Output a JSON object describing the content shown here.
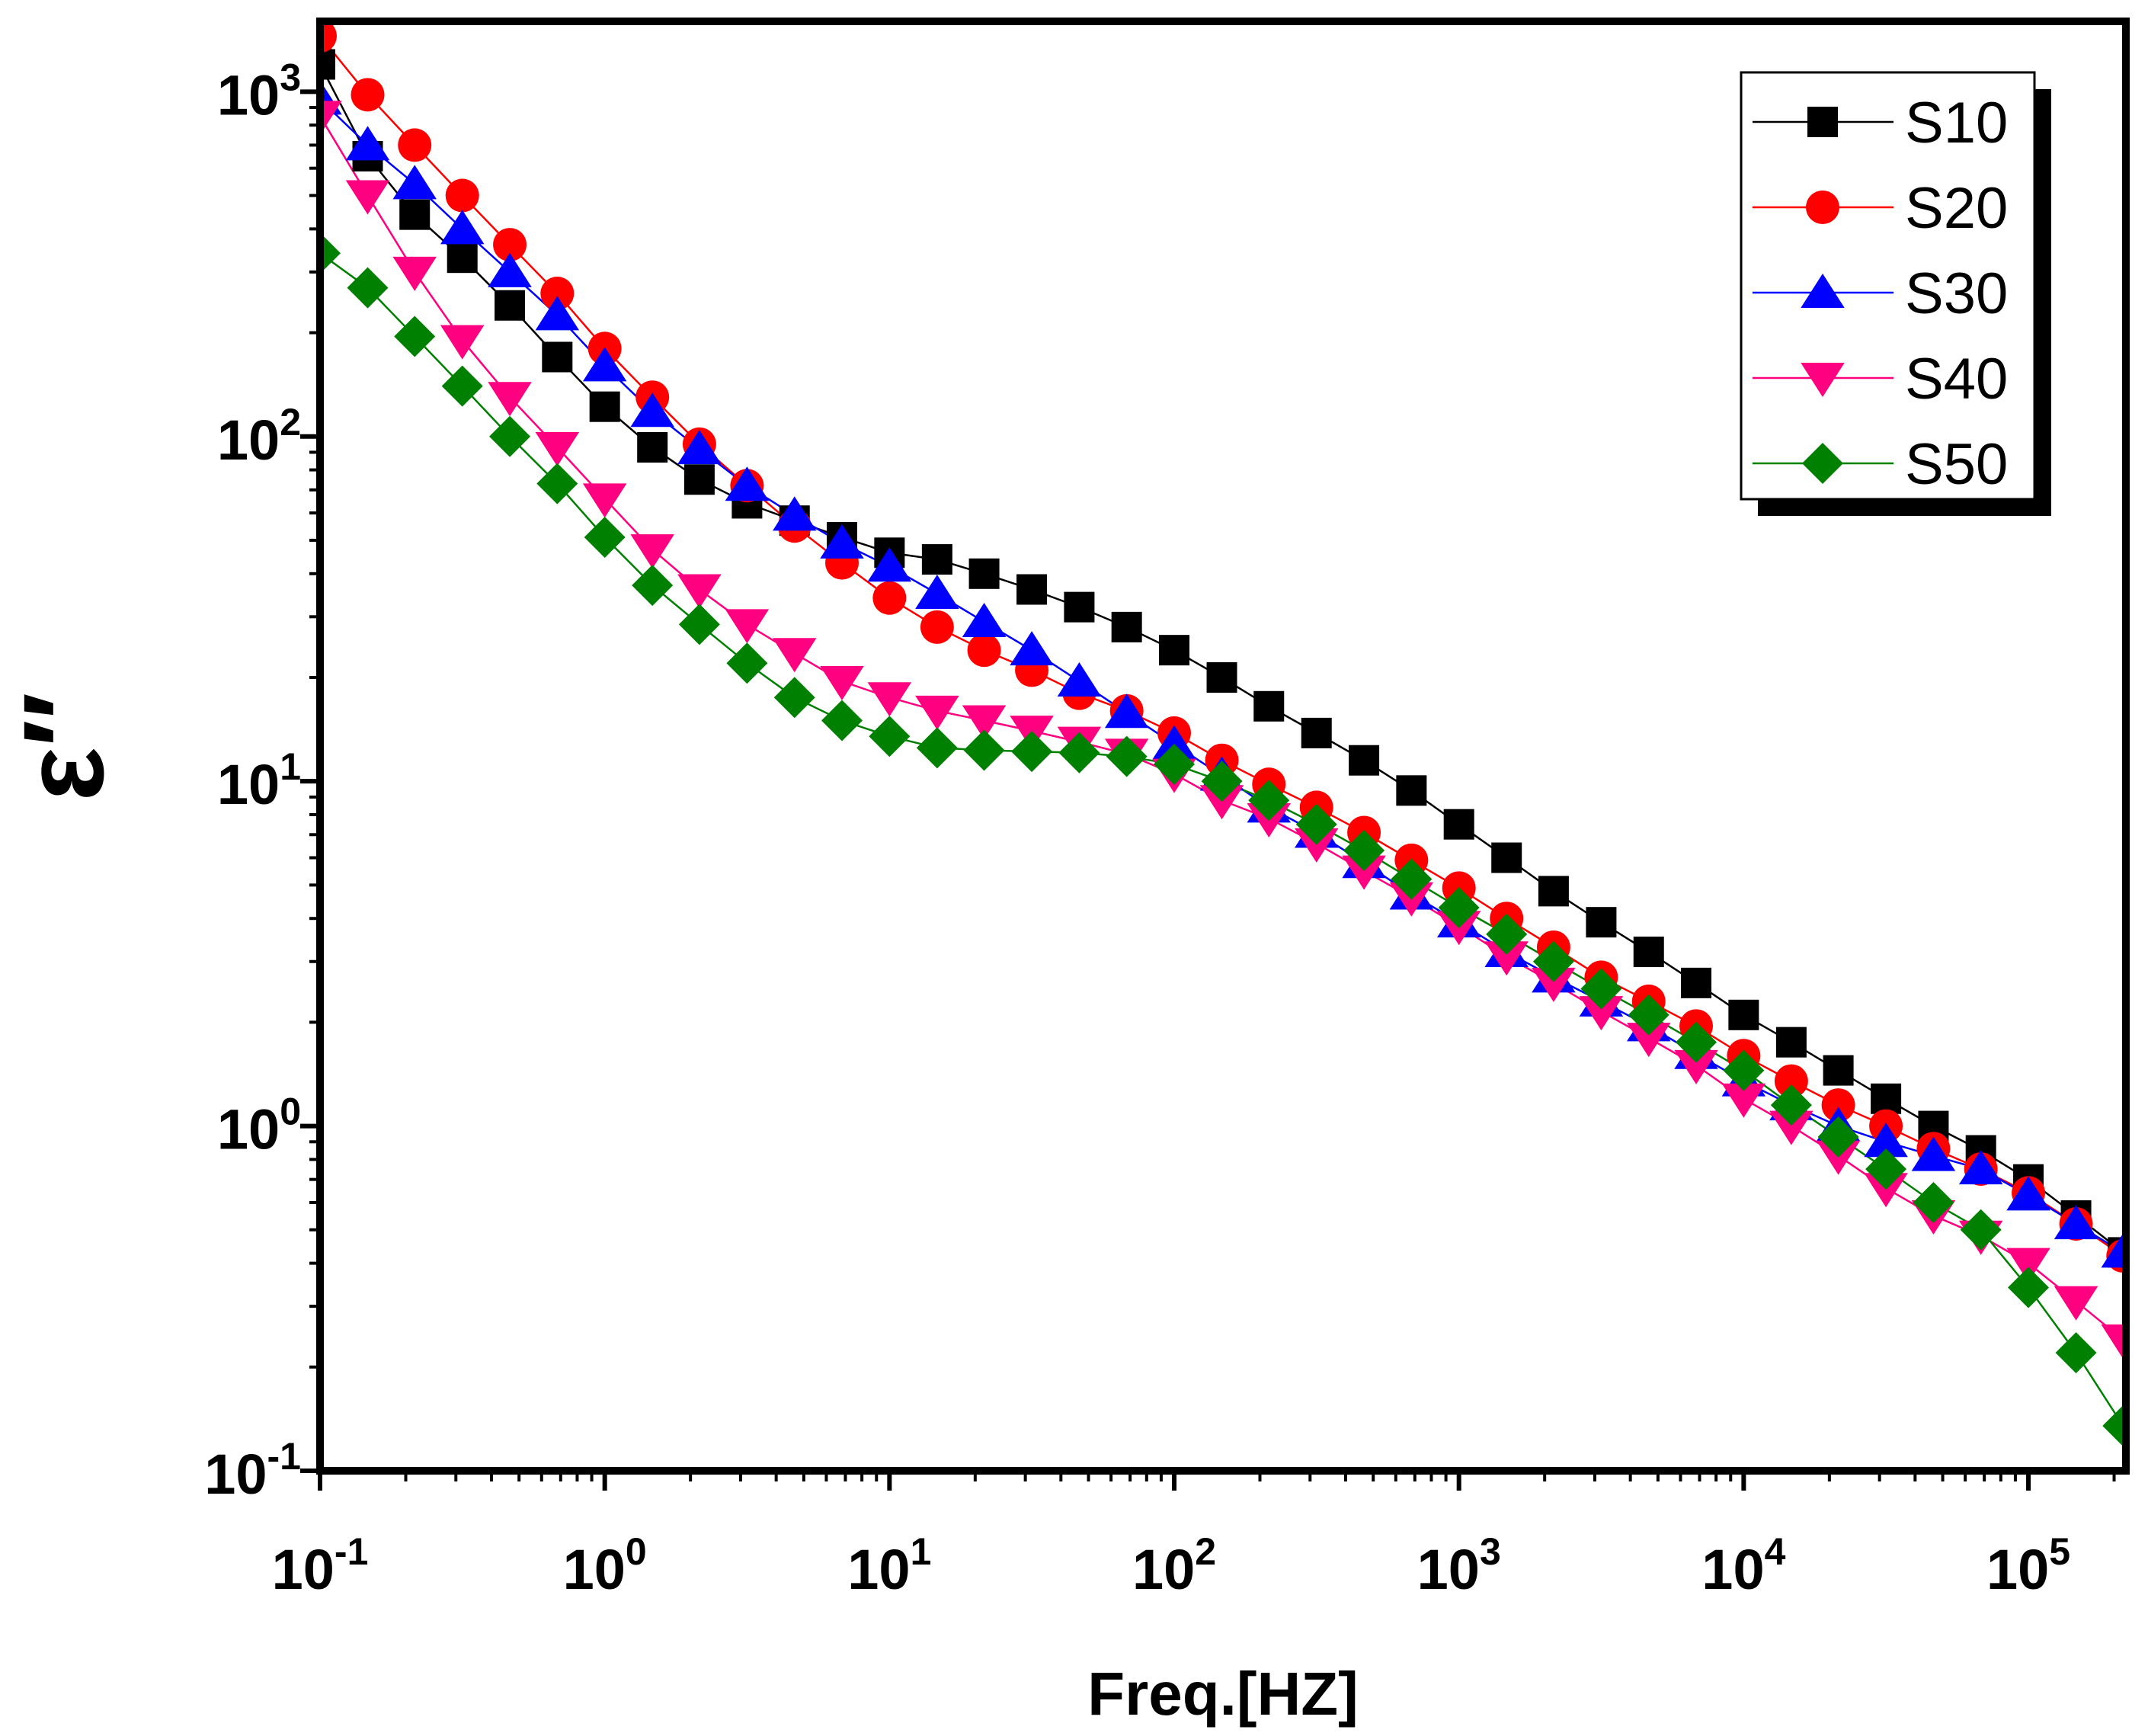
{
  "chart_data": {
    "type": "scatter",
    "title": "",
    "xlabel": "Freq.[HZ]",
    "ylabel": "ε′′",
    "xscale": "log",
    "yscale": "log",
    "xlim": [
      0.1,
      220000
    ],
    "ylim": [
      0.1,
      1600
    ],
    "xtick_labels": [
      {
        "value": 0.1,
        "base": "10",
        "exp": "-1"
      },
      {
        "value": 1,
        "base": "10",
        "exp": "0"
      },
      {
        "value": 10,
        "base": "10",
        "exp": "1"
      },
      {
        "value": 100,
        "base": "10",
        "exp": "2"
      },
      {
        "value": 1000,
        "base": "10",
        "exp": "3"
      },
      {
        "value": 10000,
        "base": "10",
        "exp": "4"
      },
      {
        "value": 100000,
        "base": "10",
        "exp": "5"
      }
    ],
    "ytick_labels": [
      {
        "value": 0.1,
        "base": "10",
        "exp": "-1"
      },
      {
        "value": 1,
        "base": "10",
        "exp": "0"
      },
      {
        "value": 10,
        "base": "10",
        "exp": "1"
      },
      {
        "value": 100,
        "base": "10",
        "exp": "2"
      },
      {
        "value": 1000,
        "base": "10",
        "exp": "3"
      }
    ],
    "legend_position": "top-right",
    "x": [
      0.1,
      0.147,
      0.215,
      0.316,
      0.464,
      0.681,
      1,
      1.47,
      2.15,
      3.16,
      4.64,
      6.81,
      10,
      14.7,
      21.5,
      31.6,
      46.4,
      68.1,
      100,
      147,
      215,
      316,
      464,
      681,
      1000,
      1470,
      2150,
      3160,
      4640,
      6810,
      10000,
      14700,
      21500,
      31600,
      46400,
      68100,
      100000,
      147000,
      215000
    ],
    "series": [
      {
        "name": "S10",
        "color": "#000000",
        "marker": "square",
        "values": [
          1200,
          650,
          440,
          330,
          240,
          170,
          122,
          93,
          75,
          64,
          57,
          51,
          46,
          44,
          40,
          36,
          32,
          28,
          24,
          20,
          16.5,
          13.8,
          11.5,
          9.4,
          7.5,
          6.0,
          4.8,
          3.9,
          3.2,
          2.6,
          2.1,
          1.75,
          1.45,
          1.2,
          1.0,
          0.85,
          0.7,
          0.55,
          0.43
        ]
      },
      {
        "name": "S20",
        "color": "#ff0000",
        "marker": "circle",
        "values": [
          1450,
          980,
          700,
          500,
          360,
          260,
          180,
          130,
          95,
          72,
          55,
          43,
          34,
          28,
          24,
          21,
          18,
          16,
          13.8,
          11.5,
          9.8,
          8.4,
          7.1,
          5.9,
          4.9,
          4.0,
          3.3,
          2.7,
          2.3,
          1.95,
          1.6,
          1.35,
          1.15,
          1.0,
          0.86,
          0.75,
          0.64,
          0.52,
          0.42
        ]
      },
      {
        "name": "S30",
        "color": "#0000ff",
        "marker": "triangle-up",
        "values": [
          950,
          700,
          540,
          400,
          300,
          225,
          160,
          118,
          92,
          72,
          59,
          49,
          42,
          35,
          29,
          24,
          19.5,
          15.8,
          12.8,
          10.4,
          8.4,
          7.1,
          5.8,
          4.7,
          3.9,
          3.2,
          2.7,
          2.3,
          1.95,
          1.62,
          1.35,
          1.15,
          1.0,
          0.9,
          0.82,
          0.75,
          0.63,
          0.52,
          0.43
        ]
      },
      {
        "name": "S40",
        "color": "#ff0080",
        "marker": "triangle-down",
        "values": [
          850,
          500,
          300,
          190,
          130,
          93,
          66,
          47,
          36,
          28.5,
          23.5,
          19.5,
          17.5,
          16,
          15,
          14,
          13,
          12,
          10.5,
          8.8,
          7.8,
          6.6,
          5.5,
          4.6,
          3.8,
          3.1,
          2.6,
          2.15,
          1.8,
          1.5,
          1.2,
          1.0,
          0.82,
          0.66,
          0.55,
          0.48,
          0.4,
          0.31,
          0.24
        ]
      },
      {
        "name": "S50",
        "color": "#008000",
        "marker": "diamond",
        "values": [
          340,
          270,
          195,
          140,
          100,
          73,
          51,
          37,
          28.5,
          22,
          17.5,
          15,
          13.5,
          12.5,
          12.3,
          12.2,
          12.1,
          11.8,
          11.2,
          10,
          8.8,
          7.5,
          6.3,
          5.2,
          4.3,
          3.6,
          3.0,
          2.5,
          2.1,
          1.75,
          1.45,
          1.15,
          0.93,
          0.75,
          0.6,
          0.5,
          0.34,
          0.22,
          0.135
        ]
      }
    ]
  }
}
